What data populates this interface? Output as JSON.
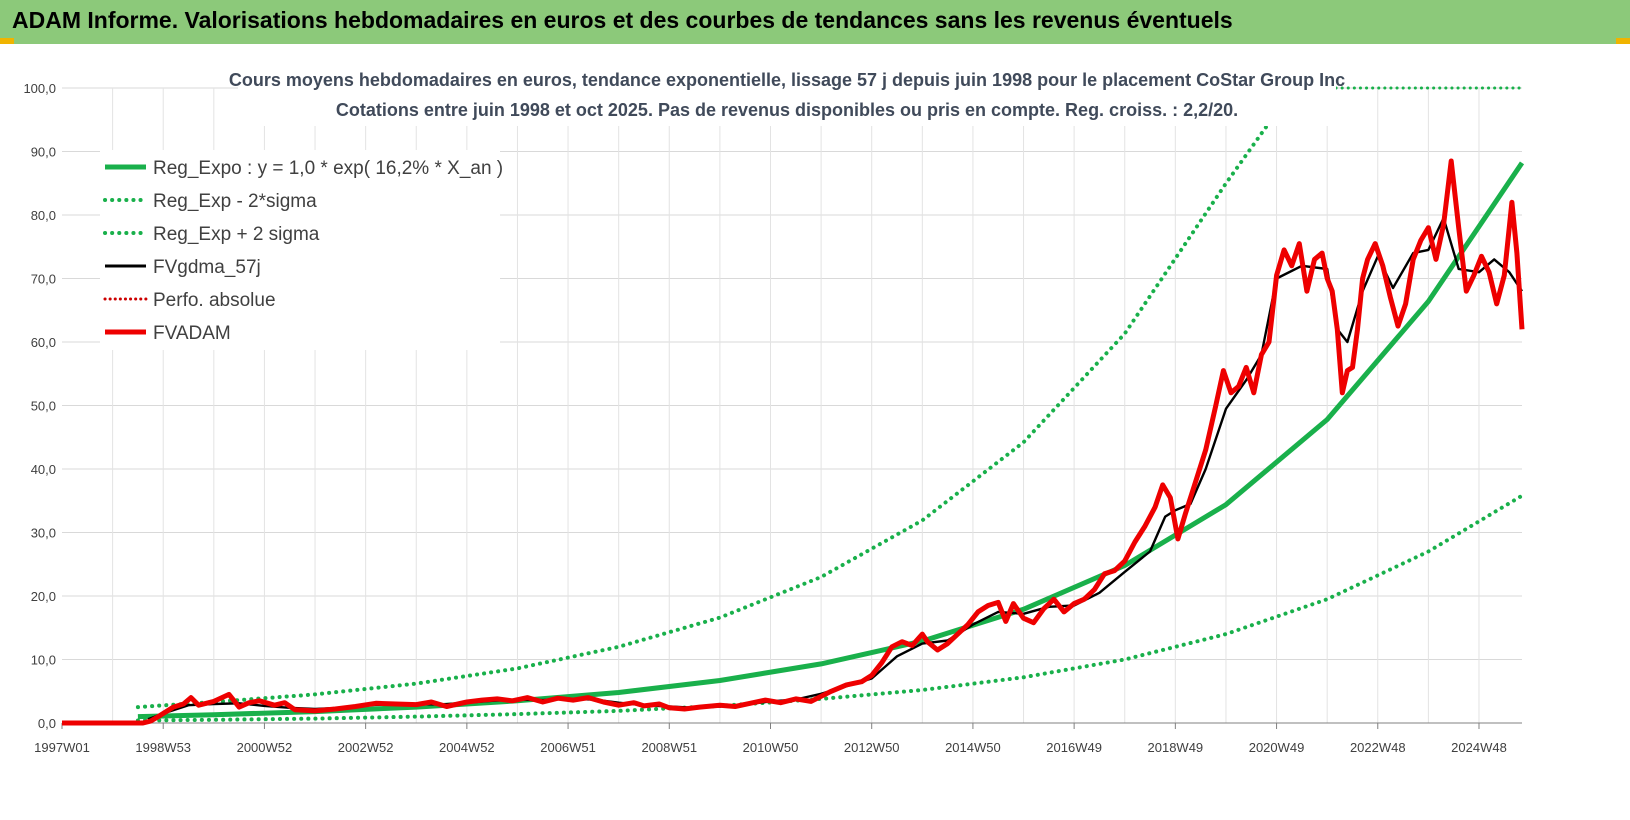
{
  "banner": {
    "title": "ADAM Informe. Valorisations hebdomadaires en euros et des courbes de tendances sans les revenus éventuels"
  },
  "chart_data": {
    "type": "line",
    "title_line1": "Cours moyens hebdomadaires en euros, tendance exponentielle, lissage 57 j depuis juin 1998 pour le placement CoStar Group Inc",
    "title_line2": "Cotations entre juin 1998 et oct 2025. Pas de revenus disponibles ou pris en compte. Reg. croiss. : 2,2/20.",
    "xlabel": "",
    "ylabel": "",
    "ylim": [
      0,
      100
    ],
    "xlim": [
      1997.0,
      2025.85
    ],
    "grid": true,
    "legend_position": "top-left",
    "yticks": [
      "0,0",
      "10,0",
      "20,0",
      "30,0",
      "40,0",
      "50,0",
      "60,0",
      "70,0",
      "80,0",
      "90,0",
      "100,0"
    ],
    "xticks": [
      {
        "label": "1997W01",
        "t": 1997.0
      },
      {
        "label": "1998W53",
        "t": 1999.0
      },
      {
        "label": "2000W52",
        "t": 2001.0
      },
      {
        "label": "2002W52",
        "t": 2003.0
      },
      {
        "label": "2004W52",
        "t": 2005.0
      },
      {
        "label": "2006W51",
        "t": 2007.0
      },
      {
        "label": "2008W51",
        "t": 2009.0
      },
      {
        "label": "2010W50",
        "t": 2011.0
      },
      {
        "label": "2012W50",
        "t": 2013.0
      },
      {
        "label": "2014W50",
        "t": 2015.0
      },
      {
        "label": "2016W49",
        "t": 2017.0
      },
      {
        "label": "2018W49",
        "t": 2019.0
      },
      {
        "label": "2020W49",
        "t": 2021.0
      },
      {
        "label": "2022W48",
        "t": 2023.0
      },
      {
        "label": "2024W48",
        "t": 2025.0
      }
    ],
    "series": [
      {
        "name": "Reg_Expo : y = 1,0 * exp( 16,2% *  X_an )",
        "color": "#19b04b",
        "style": "solid-thick",
        "points": [
          [
            1998.5,
            1.0
          ],
          [
            2000,
            1.3
          ],
          [
            2002,
            1.8
          ],
          [
            2004,
            2.5
          ],
          [
            2006,
            3.5
          ],
          [
            2008,
            4.8
          ],
          [
            2010,
            6.7
          ],
          [
            2012,
            9.3
          ],
          [
            2014,
            12.9
          ],
          [
            2016,
            17.9
          ],
          [
            2018,
            24.8
          ],
          [
            2020,
            34.4
          ],
          [
            2022,
            47.8
          ],
          [
            2024,
            66.4
          ],
          [
            2025.85,
            88.2
          ]
        ]
      },
      {
        "name": "Reg_Exp - 2*sigma",
        "color": "#19b04b",
        "style": "dotted",
        "points": [
          [
            1998.5,
            0.4
          ],
          [
            2000,
            0.5
          ],
          [
            2002,
            0.7
          ],
          [
            2004,
            1.0
          ],
          [
            2006,
            1.4
          ],
          [
            2008,
            1.9
          ],
          [
            2010,
            2.7
          ],
          [
            2012,
            3.8
          ],
          [
            2014,
            5.2
          ],
          [
            2016,
            7.2
          ],
          [
            2018,
            10.0
          ],
          [
            2020,
            14.0
          ],
          [
            2022,
            19.5
          ],
          [
            2024,
            27.0
          ],
          [
            2025.85,
            35.8
          ]
        ]
      },
      {
        "name": "Reg_Exp + 2 sigma",
        "color": "#19b04b",
        "style": "dotted",
        "points": [
          [
            1998.5,
            2.5
          ],
          [
            2000,
            3.3
          ],
          [
            2002,
            4.5
          ],
          [
            2004,
            6.2
          ],
          [
            2006,
            8.6
          ],
          [
            2008,
            12.0
          ],
          [
            2010,
            16.6
          ],
          [
            2012,
            23.0
          ],
          [
            2014,
            31.9
          ],
          [
            2016,
            44.2
          ],
          [
            2018,
            61.3
          ],
          [
            2020,
            85.0
          ],
          [
            2020.85,
            94.5
          ]
        ]
      },
      {
        "name": "FVgdma_57j",
        "color": "#000000",
        "style": "solid",
        "points": [
          [
            1998.7,
            0.6
          ],
          [
            1999,
            1.5
          ],
          [
            1999.5,
            2.8
          ],
          [
            2000,
            3.0
          ],
          [
            2000.5,
            3.1
          ],
          [
            2001,
            2.7
          ],
          [
            2001.5,
            2.4
          ],
          [
            2002,
            2.2
          ],
          [
            2002.5,
            2.4
          ],
          [
            2003,
            2.8
          ],
          [
            2003.5,
            2.9
          ],
          [
            2004,
            3.0
          ],
          [
            2004.5,
            2.9
          ],
          [
            2005,
            3.2
          ],
          [
            2005.5,
            3.5
          ],
          [
            2006,
            3.7
          ],
          [
            2006.5,
            3.6
          ],
          [
            2007,
            3.8
          ],
          [
            2007.5,
            3.7
          ],
          [
            2008,
            3.2
          ],
          [
            2008.5,
            2.8
          ],
          [
            2009,
            2.6
          ],
          [
            2009.5,
            2.4
          ],
          [
            2010,
            2.6
          ],
          [
            2010.5,
            2.9
          ],
          [
            2011,
            3.4
          ],
          [
            2011.5,
            3.7
          ],
          [
            2012,
            4.6
          ],
          [
            2012.5,
            5.8
          ],
          [
            2013,
            7.0
          ],
          [
            2013.5,
            10.5
          ],
          [
            2014,
            12.5
          ],
          [
            2014.5,
            13.0
          ],
          [
            2015,
            15.5
          ],
          [
            2015.5,
            17.5
          ],
          [
            2016,
            17.2
          ],
          [
            2016.5,
            18.3
          ],
          [
            2017,
            18.5
          ],
          [
            2017.5,
            20.5
          ],
          [
            2018,
            23.8
          ],
          [
            2018.5,
            27.0
          ],
          [
            2018.8,
            32.5
          ],
          [
            2019,
            33.5
          ],
          [
            2019.3,
            34.5
          ],
          [
            2019.6,
            40.0
          ],
          [
            2020,
            49.5
          ],
          [
            2020.4,
            54.0
          ],
          [
            2020.7,
            58.0
          ],
          [
            2021,
            70.0
          ],
          [
            2021.5,
            72.0
          ],
          [
            2022,
            71.5
          ],
          [
            2022.2,
            62.0
          ],
          [
            2022.4,
            60.0
          ],
          [
            2022.7,
            68.0
          ],
          [
            2023,
            73.5
          ],
          [
            2023.3,
            68.5
          ],
          [
            2023.7,
            74.0
          ],
          [
            2024,
            74.5
          ],
          [
            2024.3,
            79.5
          ],
          [
            2024.6,
            71.5
          ],
          [
            2025,
            71.0
          ],
          [
            2025.3,
            73.0
          ],
          [
            2025.6,
            71.0
          ],
          [
            2025.85,
            68.0
          ]
        ]
      },
      {
        "name": "Perfo. absolue",
        "color": "#cc0000",
        "style": "dotted",
        "points": []
      },
      {
        "name": "FVADAM",
        "color": "#ee0000",
        "style": "solid-thick",
        "points": [
          [
            1997.0,
            0
          ],
          [
            1998.6,
            0
          ],
          [
            1998.75,
            0.3
          ],
          [
            1998.9,
            1.0
          ],
          [
            1999.2,
            2.5
          ],
          [
            1999.4,
            3.0
          ],
          [
            1999.55,
            4.0
          ],
          [
            1999.7,
            2.8
          ],
          [
            2000,
            3.4
          ],
          [
            2000.3,
            4.5
          ],
          [
            2000.5,
            2.5
          ],
          [
            2000.7,
            3.2
          ],
          [
            2000.9,
            3.5
          ],
          [
            2001.2,
            2.8
          ],
          [
            2001.4,
            3.2
          ],
          [
            2001.6,
            2.1
          ],
          [
            2002,
            1.9
          ],
          [
            2002.4,
            2.2
          ],
          [
            2002.8,
            2.6
          ],
          [
            2003.2,
            3.1
          ],
          [
            2003.6,
            3.0
          ],
          [
            2004,
            2.9
          ],
          [
            2004.3,
            3.3
          ],
          [
            2004.6,
            2.6
          ],
          [
            2005,
            3.3
          ],
          [
            2005.3,
            3.6
          ],
          [
            2005.6,
            3.8
          ],
          [
            2005.9,
            3.5
          ],
          [
            2006.2,
            4.0
          ],
          [
            2006.5,
            3.3
          ],
          [
            2006.8,
            3.9
          ],
          [
            2007.1,
            3.6
          ],
          [
            2007.4,
            4.0
          ],
          [
            2007.7,
            3.3
          ],
          [
            2008,
            2.8
          ],
          [
            2008.3,
            3.2
          ],
          [
            2008.5,
            2.7
          ],
          [
            2008.8,
            3.0
          ],
          [
            2009,
            2.4
          ],
          [
            2009.3,
            2.2
          ],
          [
            2009.6,
            2.5
          ],
          [
            2010,
            2.8
          ],
          [
            2010.3,
            2.6
          ],
          [
            2010.6,
            3.1
          ],
          [
            2010.9,
            3.6
          ],
          [
            2011.2,
            3.2
          ],
          [
            2011.5,
            3.8
          ],
          [
            2011.8,
            3.4
          ],
          [
            2012,
            4.2
          ],
          [
            2012.2,
            5.0
          ],
          [
            2012.5,
            6.0
          ],
          [
            2012.8,
            6.5
          ],
          [
            2013,
            7.5
          ],
          [
            2013.2,
            9.5
          ],
          [
            2013.4,
            12.0
          ],
          [
            2013.6,
            12.8
          ],
          [
            2013.8,
            12.2
          ],
          [
            2014,
            14.0
          ],
          [
            2014.1,
            12.8
          ],
          [
            2014.3,
            11.5
          ],
          [
            2014.5,
            12.5
          ],
          [
            2014.7,
            14.0
          ],
          [
            2014.9,
            15.5
          ],
          [
            2015.1,
            17.5
          ],
          [
            2015.3,
            18.5
          ],
          [
            2015.5,
            19.0
          ],
          [
            2015.65,
            16.0
          ],
          [
            2015.8,
            18.8
          ],
          [
            2016.0,
            16.5
          ],
          [
            2016.2,
            15.8
          ],
          [
            2016.4,
            18.0
          ],
          [
            2016.6,
            19.5
          ],
          [
            2016.8,
            17.5
          ],
          [
            2017,
            18.8
          ],
          [
            2017.2,
            19.5
          ],
          [
            2017.4,
            21.0
          ],
          [
            2017.6,
            23.5
          ],
          [
            2017.8,
            24.0
          ],
          [
            2018,
            25.5
          ],
          [
            2018.2,
            28.5
          ],
          [
            2018.4,
            31.0
          ],
          [
            2018.6,
            34.0
          ],
          [
            2018.75,
            37.5
          ],
          [
            2018.9,
            35.5
          ],
          [
            2019.05,
            29.0
          ],
          [
            2019.2,
            33.0
          ],
          [
            2019.4,
            38.0
          ],
          [
            2019.6,
            43.0
          ],
          [
            2019.8,
            50.0
          ],
          [
            2019.95,
            55.5
          ],
          [
            2020.1,
            52.0
          ],
          [
            2020.25,
            53.0
          ],
          [
            2020.4,
            56.0
          ],
          [
            2020.55,
            52.0
          ],
          [
            2020.7,
            58.0
          ],
          [
            2020.85,
            60.0
          ],
          [
            2021.0,
            70.5
          ],
          [
            2021.15,
            74.5
          ],
          [
            2021.3,
            72.0
          ],
          [
            2021.45,
            75.5
          ],
          [
            2021.6,
            68.0
          ],
          [
            2021.75,
            73.0
          ],
          [
            2021.9,
            74.0
          ],
          [
            2022.0,
            70.0
          ],
          [
            2022.1,
            68.0
          ],
          [
            2022.2,
            62.0
          ],
          [
            2022.3,
            52.0
          ],
          [
            2022.4,
            55.5
          ],
          [
            2022.5,
            56.0
          ],
          [
            2022.6,
            62.0
          ],
          [
            2022.7,
            70.0
          ],
          [
            2022.8,
            73.0
          ],
          [
            2022.95,
            75.5
          ],
          [
            2023.1,
            72.0
          ],
          [
            2023.25,
            67.0
          ],
          [
            2023.4,
            62.5
          ],
          [
            2023.55,
            66.0
          ],
          [
            2023.7,
            73.0
          ],
          [
            2023.85,
            76.0
          ],
          [
            2024.0,
            78.0
          ],
          [
            2024.15,
            73.0
          ],
          [
            2024.3,
            78.5
          ],
          [
            2024.45,
            88.5
          ],
          [
            2024.6,
            78.0
          ],
          [
            2024.75,
            68.0
          ],
          [
            2024.9,
            70.5
          ],
          [
            2025.05,
            73.5
          ],
          [
            2025.2,
            71.0
          ],
          [
            2025.35,
            66.0
          ],
          [
            2025.5,
            70.5
          ],
          [
            2025.65,
            82.0
          ],
          [
            2025.75,
            74.0
          ],
          [
            2025.85,
            62.0
          ]
        ]
      }
    ]
  }
}
